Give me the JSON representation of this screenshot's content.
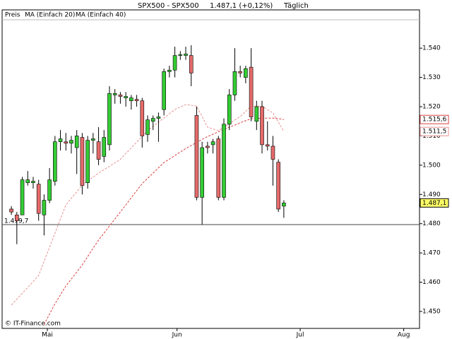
{
  "chart_data": {
    "type": "candlestick",
    "title": "SPX500 - SPX500",
    "subtitle": "1.487,1 (+0,12%)",
    "period": "Täglich",
    "price_label": "Preis",
    "credit": "© IT-Finance.com",
    "up_color": "#33cc33",
    "down_color": "#e66a6a",
    "categories": [
      null,
      null,
      null,
      null,
      null,
      null,
      null,
      null,
      null,
      null,
      null,
      null,
      null,
      null,
      null,
      null,
      null,
      null,
      null,
      null,
      null,
      null,
      null,
      null,
      null,
      null,
      null,
      null,
      null,
      null,
      null,
      null,
      null,
      null,
      null,
      null,
      null,
      null,
      null,
      null,
      null,
      null,
      null,
      null,
      null,
      null,
      null,
      null,
      null,
      null,
      null
    ],
    "candles": {
      "open": [
        1485,
        1483,
        1483,
        1494,
        1494,
        1493.5,
        1483,
        1488,
        1494.5,
        1508,
        1508,
        1507.5,
        1506,
        1509.5,
        1494,
        1508.5,
        1508,
        1503,
        1507,
        1524,
        1524,
        1523,
        1522,
        1522.5,
        1522,
        1510.5,
        1515,
        1516,
        1519,
        1532,
        1532.5,
        1537.5,
        1537.5,
        1537.5,
        1517,
        1489,
        1506.5,
        1507,
        1509,
        1489,
        1514,
        1524,
        1532,
        1530,
        1533.5,
        1515,
        1520,
        1507,
        1506.5,
        1501,
        1486
      ],
      "high": [
        1486,
        1484,
        1496,
        1498,
        1496,
        1495,
        1490,
        1499,
        1510,
        1512,
        1511,
        1510,
        1512,
        1511,
        1510,
        1511,
        1513,
        1512,
        1527,
        1526,
        1525,
        1525,
        1524,
        1524,
        1523,
        1517,
        1517,
        1518,
        1533,
        1534,
        1540.5,
        1539,
        1540.5,
        1541,
        1520,
        1508,
        1508,
        1509,
        1510,
        1516,
        1526,
        1540,
        1534,
        1534,
        1540,
        1522,
        1522,
        1515,
        1510,
        1502,
        1488
      ],
      "low": [
        1483,
        1473,
        1483,
        1493,
        1492,
        1481,
        1476,
        1487,
        1493,
        1505,
        1505,
        1504,
        1497,
        1490,
        1492,
        1504,
        1500,
        1501,
        1505,
        1521,
        1521,
        1520,
        1519,
        1520,
        1506,
        1508,
        1512,
        1508,
        1517,
        1530,
        1530,
        1536,
        1536,
        1527,
        1488,
        1479.7,
        1504,
        1504,
        1488,
        1488,
        1512,
        1522,
        1530,
        1528,
        1515,
        1512,
        1504,
        1505,
        1493,
        1484,
        1482
      ],
      "close": [
        1484,
        1481,
        1495,
        1495,
        1494.5,
        1483.5,
        1488,
        1495,
        1508,
        1509,
        1507.5,
        1508.5,
        1510,
        1493,
        1508.5,
        1509,
        1502,
        1509.5,
        1524.5,
        1524.5,
        1523.5,
        1523.5,
        1523,
        1522,
        1510,
        1515.5,
        1516,
        1516.5,
        1532,
        1532.5,
        1537.5,
        1537.8,
        1538,
        1531.5,
        1489,
        1506,
        1506,
        1508,
        1489,
        1514,
        1524,
        1532,
        1531.5,
        1533,
        1516.5,
        1520,
        1507,
        1506.5,
        1502,
        1485,
        1487.1
      ],
      "last_label": "1.487,1"
    },
    "series": [
      {
        "name": "MA (Einfach 20)",
        "color": "#e89090",
        "last_label": "1.511,5",
        "values": [
          1452.2,
          1454.2,
          1456.2,
          1458.2,
          1460.2,
          1462.3,
          1467.1,
          1471.9,
          1476.8,
          1481.6,
          1486.4,
          1488.7,
          1490.9,
          1493.2,
          1494.6,
          1495.9,
          1497.3,
          1498.5,
          1499.6,
          1500.8,
          1502,
          1504,
          1505.9,
          1507.9,
          1509.8,
          1511.8,
          1513.2,
          1514.7,
          1516.1,
          1517.6,
          1519,
          1519.9,
          1520.7,
          1520.5,
          1520.2,
          1516.6,
          1513,
          1512.4,
          1511.8,
          1513,
          1514.2,
          1515.4,
          1516.6,
          1518.4,
          1520.2,
          1520.2,
          1520.2,
          1519,
          1517.8,
          1514.7,
          1511.5
        ]
      },
      {
        "name": "MA (Einfach 40)",
        "color": "#d94040",
        "last_label": "1.515,6",
        "values": [
          null,
          null,
          null,
          null,
          null,
          null,
          1445.5,
          1449.1,
          1452.6,
          1455.7,
          1458.7,
          1461.1,
          1463.5,
          1465.9,
          1468.7,
          1471.6,
          1474.4,
          1476.8,
          1479.2,
          1481.6,
          1484,
          1486.4,
          1488.9,
          1491.3,
          1493.7,
          1495.5,
          1497.3,
          1499.1,
          1500.9,
          1502.1,
          1503.3,
          1504.5,
          1505.7,
          1506.7,
          1507.8,
          1508.8,
          1509.8,
          1510.6,
          1511.4,
          1512.2,
          1513,
          1513.7,
          1514.5,
          1515.2,
          1515.9,
          1516,
          1516,
          1516.1,
          1516.1,
          1515.9,
          1515.6
        ]
      }
    ],
    "reference": {
      "value": 1479.7,
      "label": "1.479,7"
    },
    "xlim": [
      -1.7,
      74.9
    ],
    "xticks": [
      {
        "value": 6.6,
        "label": "Mai"
      },
      {
        "value": 30.4,
        "label": "Jun"
      },
      {
        "value": 53.0,
        "label": "Jul"
      },
      {
        "value": 72.0,
        "label": "Aug"
      }
    ],
    "ylim": [
      1444.2,
      1549.7
    ],
    "yticks": [
      {
        "value": 1450,
        "label": "1.450"
      },
      {
        "value": 1460,
        "label": "1.460"
      },
      {
        "value": 1470,
        "label": "1.470"
      },
      {
        "value": 1480,
        "label": "1.480"
      },
      {
        "value": 1490,
        "label": "1.490"
      },
      {
        "value": 1500,
        "label": "1.500"
      },
      {
        "value": 1510,
        "label": "1.510"
      },
      {
        "value": 1520,
        "label": "1.520"
      },
      {
        "value": 1530,
        "label": "1.530"
      },
      {
        "value": 1540,
        "label": "1.540"
      }
    ]
  }
}
